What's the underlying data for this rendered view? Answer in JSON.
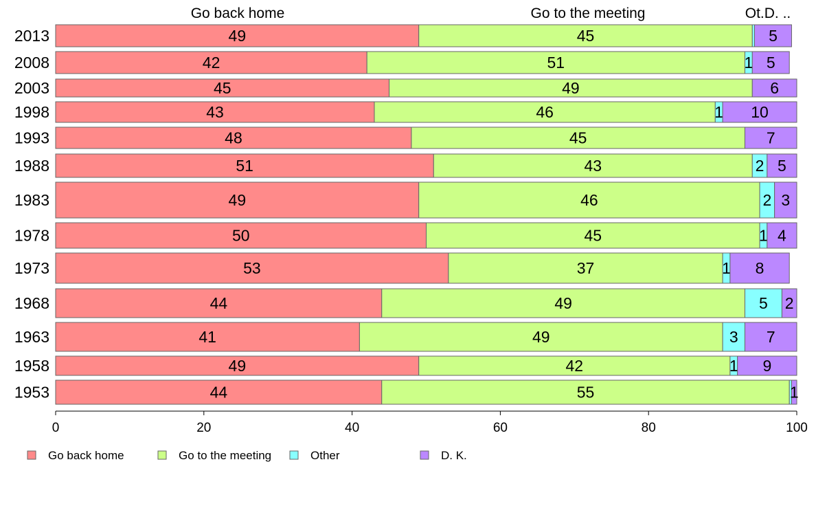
{
  "chart_data": {
    "type": "bar",
    "orientation": "horizontal",
    "stacked": true,
    "categories": [
      "2013",
      "2008",
      "2003",
      "1998",
      "1993",
      "1988",
      "1983",
      "1978",
      "1973",
      "1968",
      "1963",
      "1958",
      "1953"
    ],
    "series": [
      {
        "name": "Go back home",
        "color": "#ff8a8a",
        "values": [
          49,
          42,
          45,
          43,
          48,
          51,
          49,
          50,
          53,
          44,
          41,
          49,
          44
        ]
      },
      {
        "name": "Go to the meeting",
        "color": "#ccff88",
        "values": [
          45,
          51,
          49,
          46,
          45,
          43,
          46,
          45,
          37,
          49,
          49,
          42,
          55
        ]
      },
      {
        "name": "Other",
        "color": "#88ffff",
        "values": [
          0.3,
          1,
          0,
          1,
          0,
          2,
          2,
          1,
          1,
          5,
          3,
          1,
          0.3
        ]
      },
      {
        "name": "D. K.",
        "color": "#bb88ff",
        "values": [
          5,
          5,
          6,
          10,
          7,
          5,
          3,
          4,
          8,
          2,
          7,
          9,
          1
        ]
      }
    ],
    "segment_labels": [
      [
        "49",
        "45",
        "",
        "5"
      ],
      [
        "42",
        "51",
        "1",
        "5"
      ],
      [
        "45",
        "49",
        "",
        "6"
      ],
      [
        "43",
        "46",
        "1",
        "10"
      ],
      [
        "48",
        "45",
        "",
        "7"
      ],
      [
        "51",
        "43",
        "2",
        "5"
      ],
      [
        "49",
        "46",
        "2",
        "3"
      ],
      [
        "50",
        "45",
        "1",
        "4"
      ],
      [
        "53",
        "37",
        "1",
        "8"
      ],
      [
        "44",
        "49",
        "5",
        "2"
      ],
      [
        "41",
        "49",
        "3",
        "7"
      ],
      [
        "49",
        "42",
        "1",
        "9"
      ],
      [
        "44",
        "55",
        "",
        "1"
      ]
    ],
    "column_headers": [
      "Go back home",
      "Go to the meeting",
      "Ot.D. .."
    ],
    "xlim": [
      0,
      100
    ],
    "xticks": [
      "0",
      "20",
      "40",
      "60",
      "80",
      "100"
    ],
    "legend_position": "bottom-left",
    "grid": false
  }
}
